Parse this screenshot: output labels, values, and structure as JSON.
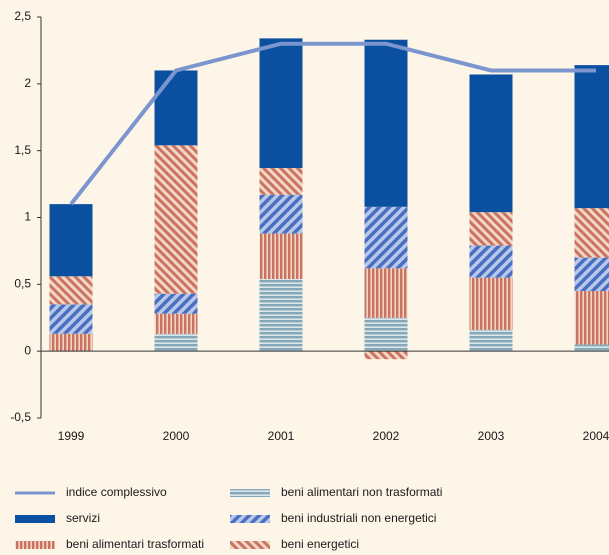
{
  "chart_data": {
    "type": "bar",
    "categories": [
      "1999",
      "2000",
      "2001",
      "2002",
      "2003",
      "2004"
    ],
    "series": [
      {
        "name": "indice complessivo",
        "type": "line",
        "color": "#7b95cf",
        "values": [
          1.1,
          2.1,
          2.3,
          2.3,
          2.1,
          2.1
        ]
      },
      {
        "name": "servizi",
        "color": "#0a4fa0",
        "values": [
          0.54,
          0.56,
          0.97,
          1.25,
          1.03,
          1.07
        ]
      },
      {
        "name": "beni alimentari trasformati",
        "color": "#c9745e",
        "values": [
          0.13,
          0.15,
          0.34,
          0.37,
          0.39,
          0.4
        ]
      },
      {
        "name": "beni alimentari non trasformati",
        "color": "#86a8b8",
        "values": [
          0,
          0.13,
          0.54,
          0.25,
          0.16,
          0.05
        ]
      },
      {
        "name": "beni industriali non energetici",
        "color": "#4a6fc0",
        "values": [
          0.22,
          0.15,
          0.29,
          0.46,
          0.24,
          0.25
        ]
      },
      {
        "name": "beni energetici",
        "color": "#c9745e",
        "values": [
          0.21,
          1.11,
          0.2,
          -0.06,
          0.25,
          0.37
        ]
      }
    ],
    "ylim": [
      -0.5,
      2.5
    ],
    "yticks": [
      {
        "value": -0.5,
        "label": "-0,5"
      },
      0,
      {
        "value": 0.5,
        "label": "0,5"
      },
      1,
      {
        "value": 1.5,
        "label": "1,5"
      },
      2,
      {
        "value": 2.5,
        "label": "2,5"
      }
    ]
  }
}
